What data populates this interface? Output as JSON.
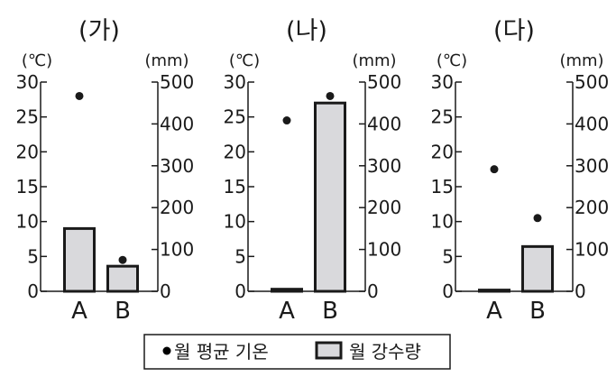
{
  "legend": {
    "temp_label": "월 평균 기온",
    "precip_label": "월 강수량"
  },
  "style": {
    "bar_fill": "#d9d9dc",
    "bar_stroke": "#1a1a1a",
    "point_color": "#1a1a1a",
    "axis_color": "#1a1a1a"
  },
  "chart_data": [
    {
      "type": "bar",
      "title": "(가)",
      "left_unit": "(℃)",
      "right_unit": "(mm)",
      "categories": [
        "A",
        "B"
      ],
      "left_ticks": [
        "30",
        "25",
        "20",
        "15",
        "10",
        "5",
        "0"
      ],
      "right_ticks": [
        "500",
        "400",
        "300",
        "200",
        "100",
        "0"
      ],
      "ylim_left": [
        0,
        30
      ],
      "ylim_right": [
        0,
        500
      ],
      "series": [
        {
          "name": "월 강수량",
          "axis": "right",
          "type": "bar",
          "values": [
            150,
            60
          ]
        },
        {
          "name": "월 평균 기온",
          "axis": "left",
          "type": "scatter",
          "values": [
            28,
            4.5
          ]
        }
      ]
    },
    {
      "type": "bar",
      "title": "(나)",
      "left_unit": "(℃)",
      "right_unit": "(mm)",
      "categories": [
        "A",
        "B"
      ],
      "left_ticks": [
        "30",
        "25",
        "20",
        "15",
        "10",
        "5",
        "0"
      ],
      "right_ticks": [
        "500",
        "400",
        "300",
        "200",
        "100",
        "0"
      ],
      "ylim_left": [
        0,
        30
      ],
      "ylim_right": [
        0,
        500
      ],
      "series": [
        {
          "name": "월 강수량",
          "axis": "right",
          "type": "bar",
          "values": [
            5,
            450
          ]
        },
        {
          "name": "월 평균 기온",
          "axis": "left",
          "type": "scatter",
          "values": [
            24.5,
            28
          ]
        }
      ]
    },
    {
      "type": "bar",
      "title": "(다)",
      "left_unit": "(℃)",
      "right_unit": "(mm)",
      "categories": [
        "A",
        "B"
      ],
      "left_ticks": [
        "30",
        "25",
        "20",
        "15",
        "10",
        "5",
        "0"
      ],
      "right_ticks": [
        "500",
        "400",
        "300",
        "200",
        "100",
        "0"
      ],
      "ylim_left": [
        0,
        30
      ],
      "ylim_right": [
        0,
        500
      ],
      "series": [
        {
          "name": "월 강수량",
          "axis": "right",
          "type": "bar",
          "values": [
            3,
            107
          ]
        },
        {
          "name": "월 평균 기온",
          "axis": "left",
          "type": "scatter",
          "values": [
            17.5,
            10.5
          ]
        }
      ]
    }
  ]
}
